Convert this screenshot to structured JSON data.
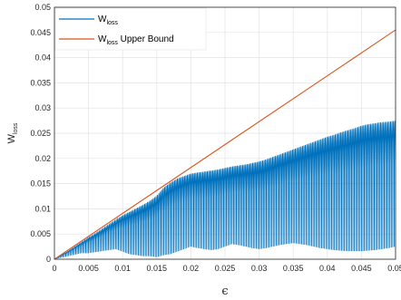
{
  "chart_data": {
    "type": "line",
    "xlabel": "ϵ",
    "ylabel": {
      "main": "W",
      "sub": "loss"
    },
    "xlim": [
      0,
      0.05
    ],
    "ylim": [
      0,
      0.05
    ],
    "grid": true,
    "legend_position": "top-left",
    "x_ticks": [
      "0",
      "0.005",
      "0.01",
      "0.015",
      "0.02",
      "0.025",
      "0.03",
      "0.035",
      "0.04",
      "0.045",
      "0.05"
    ],
    "y_ticks": [
      "0",
      "0.005",
      "0.01",
      "0.015",
      "0.02",
      "0.025",
      "0.03",
      "0.035",
      "0.04",
      "0.045",
      "0.05"
    ],
    "series": [
      {
        "name": {
          "main": "W",
          "sub": "loss",
          "suffix": ""
        },
        "color": "#0072BD",
        "x": [
          0,
          0.001,
          0.002,
          0.003,
          0.004,
          0.005,
          0.006,
          0.007,
          0.008,
          0.009,
          0.01,
          0.011,
          0.012,
          0.013,
          0.014,
          0.015,
          0.016,
          0.017,
          0.018,
          0.019,
          0.02,
          0.021,
          0.022,
          0.023,
          0.024,
          0.025,
          0.026,
          0.027,
          0.028,
          0.029,
          0.03,
          0.031,
          0.032,
          0.033,
          0.034,
          0.035,
          0.036,
          0.037,
          0.038,
          0.039,
          0.04,
          0.041,
          0.042,
          0.043,
          0.044,
          0.045,
          0.046,
          0.047,
          0.048,
          0.049,
          0.05
        ],
        "upper": [
          0,
          0.0008,
          0.0016,
          0.0025,
          0.0034,
          0.0043,
          0.0051,
          0.006,
          0.0069,
          0.0078,
          0.0087,
          0.0094,
          0.0101,
          0.0108,
          0.0116,
          0.0126,
          0.0142,
          0.0152,
          0.016,
          0.0165,
          0.017,
          0.0172,
          0.0174,
          0.0176,
          0.0178,
          0.0181,
          0.0184,
          0.0186,
          0.0188,
          0.0191,
          0.0194,
          0.0198,
          0.0203,
          0.0208,
          0.0213,
          0.0218,
          0.0223,
          0.0228,
          0.0233,
          0.0238,
          0.0243,
          0.0247,
          0.0252,
          0.0256,
          0.026,
          0.0265,
          0.0268,
          0.027,
          0.0272,
          0.0273,
          0.0275
        ],
        "lower": [
          0,
          0.0003,
          0.0006,
          0.0009,
          0.0012,
          0.0012,
          0.0014,
          0.0016,
          0.0018,
          0.002,
          0.0015,
          0.001,
          0.0008,
          0.0006,
          0.0006,
          0.0004,
          0.0008,
          0.001,
          0.0015,
          0.002,
          0.0025,
          0.0022,
          0.002,
          0.0018,
          0.002,
          0.0025,
          0.003,
          0.0028,
          0.0025,
          0.0022,
          0.002,
          0.0022,
          0.0025,
          0.0028,
          0.003,
          0.0032,
          0.003,
          0.0028,
          0.0025,
          0.0022,
          0.002,
          0.0018,
          0.0017,
          0.0016,
          0.0016,
          0.0016,
          0.0017,
          0.0018,
          0.002,
          0.0022,
          0.0025
        ],
        "oscillations": 120
      },
      {
        "name": {
          "main": "W",
          "sub": "loss",
          "suffix": " Upper Bound"
        },
        "color": "#D95319",
        "x": [
          0,
          0.05
        ],
        "y": [
          0,
          0.0455
        ]
      }
    ]
  }
}
